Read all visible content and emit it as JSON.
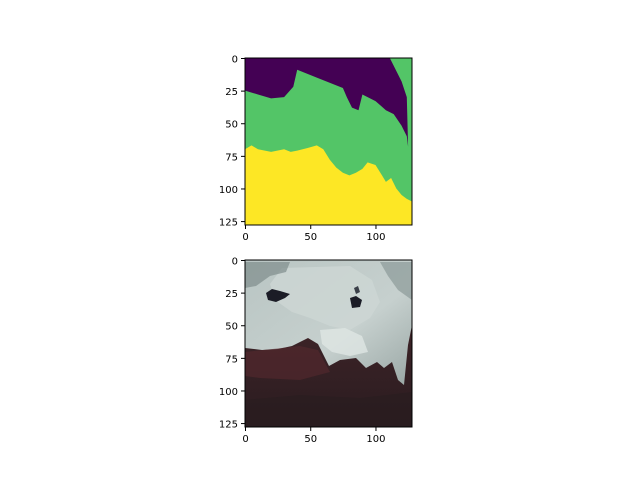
{
  "chart_data": [
    {
      "type": "heatmap",
      "title": "",
      "xlabel": "",
      "ylabel": "",
      "xlim": [
        0,
        128
      ],
      "ylim": [
        128,
        0
      ],
      "xticks": [
        0,
        50,
        100
      ],
      "yticks": [
        0,
        25,
        50,
        75,
        100,
        125
      ],
      "xtick_labels": [
        "0",
        "50",
        "100"
      ],
      "ytick_labels": [
        "0",
        "25",
        "50",
        "75",
        "100",
        "125"
      ],
      "classes": [
        {
          "value": 0,
          "color": "#440154"
        },
        {
          "value": 1,
          "color": "#53c567"
        },
        {
          "value": 2,
          "color": "#fde725"
        }
      ],
      "boundaries": {
        "class0_lower_edge": [
          [
            0,
            25
          ],
          [
            10,
            28
          ],
          [
            20,
            31
          ],
          [
            30,
            30
          ],
          [
            37,
            22
          ],
          [
            40,
            9
          ],
          [
            55,
            15
          ],
          [
            75,
            23
          ],
          [
            78,
            30
          ],
          [
            82,
            38
          ],
          [
            87,
            40
          ],
          [
            90,
            28
          ],
          [
            100,
            33
          ],
          [
            108,
            40
          ],
          [
            114,
            43
          ],
          [
            120,
            52
          ],
          [
            124,
            60
          ],
          [
            125,
            68
          ],
          [
            124,
            30
          ],
          [
            120,
            18
          ],
          [
            111,
            0
          ]
        ],
        "class0_right_edge": [
          [
            111,
            0
          ],
          [
            120,
            18
          ],
          [
            124,
            30
          ],
          [
            125,
            68
          ]
        ],
        "class1_upper_right_tip": [
          [
            111,
            0
          ],
          [
            119,
            0
          ],
          [
            124,
            15
          ],
          [
            126,
            45
          ],
          [
            128,
            48
          ]
        ],
        "class2_upper_edge": [
          [
            0,
            70
          ],
          [
            5,
            67
          ],
          [
            10,
            70
          ],
          [
            20,
            72
          ],
          [
            30,
            70
          ],
          [
            35,
            72
          ],
          [
            40,
            71
          ],
          [
            48,
            69
          ],
          [
            55,
            67
          ],
          [
            60,
            70
          ],
          [
            65,
            78
          ],
          [
            70,
            84
          ],
          [
            75,
            88
          ],
          [
            80,
            90
          ],
          [
            85,
            88
          ],
          [
            90,
            85
          ],
          [
            94,
            80
          ],
          [
            100,
            82
          ],
          [
            105,
            90
          ],
          [
            108,
            95
          ],
          [
            112,
            92
          ],
          [
            116,
            100
          ],
          [
            120,
            105
          ],
          [
            124,
            108
          ],
          [
            128,
            110
          ]
        ]
      }
    },
    {
      "type": "heatmap",
      "title": "",
      "xlabel": "",
      "ylabel": "",
      "xlim": [
        0,
        128
      ],
      "ylim": [
        128,
        0
      ],
      "xticks": [
        0,
        50,
        100
      ],
      "yticks": [
        0,
        25,
        50,
        75,
        100,
        125
      ],
      "xtick_labels": [
        "0",
        "50",
        "100"
      ],
      "ytick_labels": [
        "0",
        "25",
        "50",
        "75",
        "100",
        "125"
      ],
      "colors": {
        "ice": "#a9b6b4",
        "ice_light": "#c8d2d0",
        "ice_shadow": "#8d9a98",
        "forest": "#3a2226",
        "forest_dark": "#2a1c20",
        "water": "#1b1c26"
      }
    }
  ]
}
